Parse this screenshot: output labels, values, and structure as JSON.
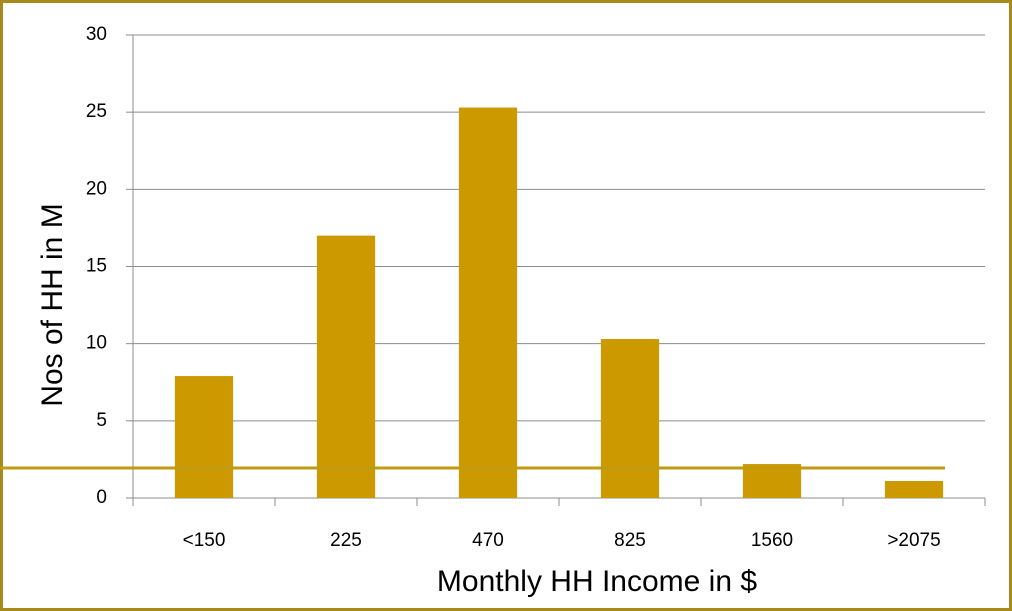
{
  "chart_data": {
    "type": "bar",
    "xlabel": "Monthly HH Income in $",
    "ylabel": "Nos of HH in M",
    "categories": [
      "<150",
      "225",
      "470",
      "825",
      "1560",
      ">2075"
    ],
    "values": [
      7.9,
      17,
      25.3,
      10.3,
      2.2,
      1.1
    ],
    "color": "#cc9900",
    "ylim": [
      0,
      30
    ],
    "yticks": [
      0,
      5,
      10,
      15,
      20,
      25,
      30
    ],
    "grid": true
  }
}
